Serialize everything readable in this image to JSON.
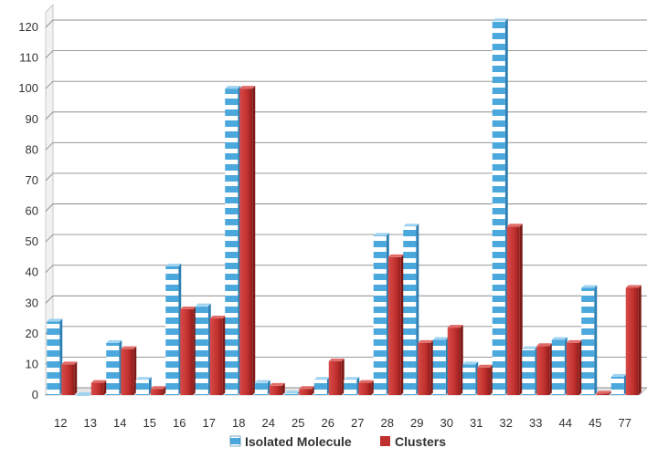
{
  "chart_data": {
    "type": "bar",
    "categories": [
      "12",
      "13",
      "14",
      "15",
      "16",
      "17",
      "18",
      "24",
      "25",
      "26",
      "27",
      "28",
      "29",
      "30",
      "31",
      "32",
      "33",
      "44",
      "45",
      "77"
    ],
    "series": [
      {
        "name": "Isolated Molecule",
        "color": "#4aa8dd",
        "values": [
          24,
          0,
          17,
          5,
          42,
          29,
          100,
          4,
          0.5,
          5,
          5,
          52,
          55,
          18,
          10,
          122,
          15,
          18,
          35,
          6
        ]
      },
      {
        "name": "Clusters",
        "color": "#c0302e",
        "values": [
          10,
          4,
          15,
          2,
          28,
          25,
          100,
          3,
          2,
          11,
          4,
          45,
          17,
          22,
          9,
          55,
          16,
          17,
          0.5,
          35
        ]
      }
    ],
    "ylim": [
      0,
      125
    ],
    "yticks": [
      0,
      10,
      20,
      30,
      40,
      50,
      60,
      70,
      80,
      90,
      100,
      110,
      120
    ],
    "grid": true,
    "legend": "bottom",
    "title": "",
    "xlabel": "",
    "ylabel": ""
  }
}
